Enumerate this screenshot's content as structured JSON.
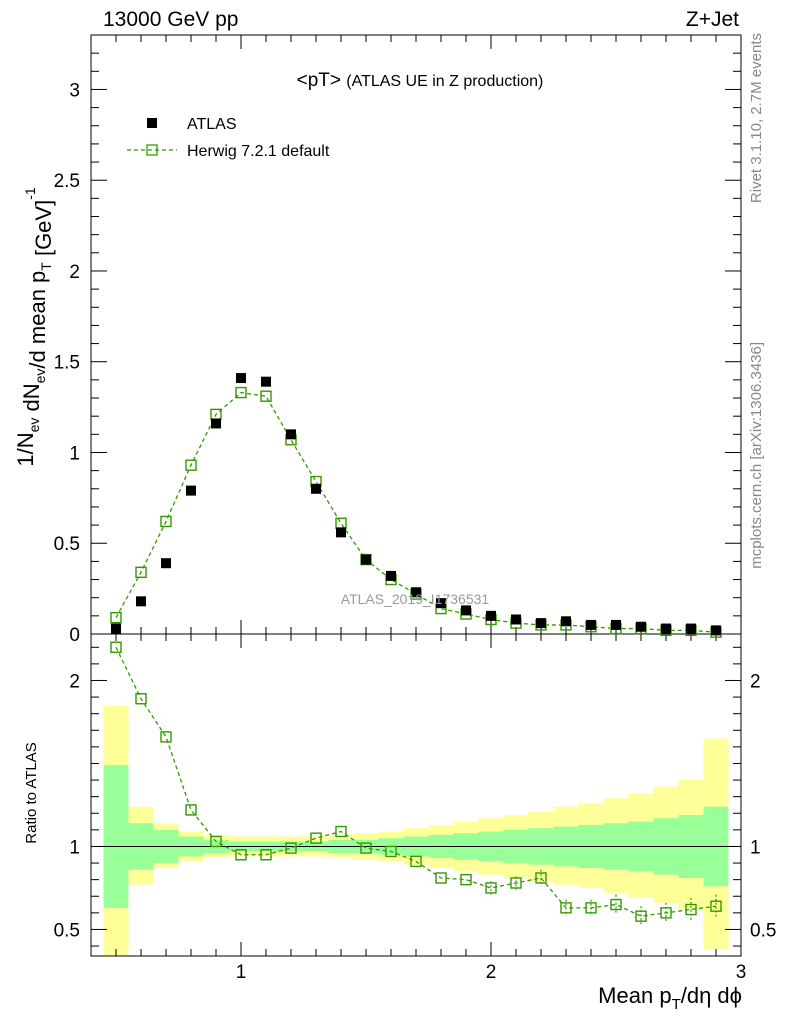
{
  "header": {
    "left": "13000 GeV pp",
    "right": "Z+Jet"
  },
  "side_labels": {
    "rivet": "Rivet 3.1.10,  2.7M events",
    "mcplots": "mcplots.cern.ch [arXiv:1306.3436]"
  },
  "chart_data": [
    {
      "type": "scatter",
      "panel": "main",
      "title": "<pT> (ATLAS UE in Z production)",
      "ylabel": "1/N_ev dN_ev/d mean p_T [GeV]^-1",
      "xlim": [
        0.4,
        3.0
      ],
      "ylim": [
        0,
        3.3
      ],
      "y_ticks": [
        0,
        0.5,
        1,
        1.5,
        2,
        2.5,
        3
      ],
      "y_tick_labels": [
        "0",
        "0.5",
        "1",
        "1.5",
        "2",
        "2.5",
        "3"
      ],
      "watermark": "ATLAS_2019_I1736531",
      "legend_position": "top-left",
      "x": [
        0.5,
        0.6,
        0.7,
        0.8,
        0.9,
        1.0,
        1.1,
        1.2,
        1.3,
        1.4,
        1.5,
        1.6,
        1.7,
        1.8,
        1.9,
        2.0,
        2.1,
        2.2,
        2.3,
        2.4,
        2.5,
        2.6,
        2.7,
        2.8,
        2.9
      ],
      "series": [
        {
          "name": "ATLAS",
          "style": "data",
          "color": "#000000",
          "values": [
            0.03,
            0.18,
            0.39,
            0.79,
            1.16,
            1.41,
            1.39,
            1.1,
            0.8,
            0.56,
            0.41,
            0.32,
            0.23,
            0.17,
            0.13,
            0.1,
            0.08,
            0.06,
            0.07,
            0.05,
            0.05,
            0.04,
            0.03,
            0.03,
            0.02
          ]
        },
        {
          "name": "Herwig 7.2.1 default",
          "style": "mc",
          "color": "#339900",
          "values": [
            0.09,
            0.34,
            0.62,
            0.93,
            1.21,
            1.33,
            1.31,
            1.07,
            0.84,
            0.61,
            0.41,
            0.3,
            0.22,
            0.14,
            0.11,
            0.08,
            0.06,
            0.05,
            0.05,
            0.04,
            0.03,
            0.03,
            0.02,
            0.02,
            0.01
          ]
        }
      ]
    },
    {
      "type": "line",
      "panel": "ratio",
      "ylabel": "Ratio to ATLAS",
      "xlabel": "Mean p_T/dη dϕ",
      "xlim": [
        0.4,
        3.0
      ],
      "ylim": [
        0.34,
        2.28
      ],
      "x_ticks": [
        1,
        2,
        3
      ],
      "x_tick_labels": [
        "1",
        "2",
        "3"
      ],
      "y_ticks": [
        0.5,
        1,
        2
      ],
      "y_tick_labels": [
        "0.5",
        "1",
        "2"
      ],
      "band_edges": [
        0.45,
        0.55,
        0.65,
        0.75,
        0.85,
        0.95,
        1.05,
        1.15,
        1.25,
        1.35,
        1.45,
        1.55,
        1.65,
        1.75,
        1.85,
        1.95,
        2.05,
        2.15,
        2.25,
        2.35,
        2.45,
        2.55,
        2.65,
        2.75,
        2.85,
        2.95
      ],
      "band_stat": [
        [
          0.63,
          1.49
        ],
        [
          0.86,
          1.14
        ],
        [
          0.9,
          1.1
        ],
        [
          0.94,
          1.06
        ],
        [
          0.96,
          1.04
        ],
        [
          0.97,
          1.03
        ],
        [
          0.97,
          1.03
        ],
        [
          0.97,
          1.03
        ],
        [
          0.97,
          1.03
        ],
        [
          0.96,
          1.04
        ],
        [
          0.96,
          1.04
        ],
        [
          0.95,
          1.05
        ],
        [
          0.94,
          1.06
        ],
        [
          0.93,
          1.07
        ],
        [
          0.92,
          1.08
        ],
        [
          0.91,
          1.09
        ],
        [
          0.9,
          1.1
        ],
        [
          0.89,
          1.11
        ],
        [
          0.88,
          1.12
        ],
        [
          0.87,
          1.13
        ],
        [
          0.86,
          1.14
        ],
        [
          0.85,
          1.15
        ],
        [
          0.83,
          1.17
        ],
        [
          0.81,
          1.19
        ],
        [
          0.76,
          1.24
        ]
      ],
      "band_total": [
        [
          0.34,
          1.85
        ],
        [
          0.77,
          1.24
        ],
        [
          0.87,
          1.14
        ],
        [
          0.91,
          1.09
        ],
        [
          0.93,
          1.07
        ],
        [
          0.94,
          1.06
        ],
        [
          0.94,
          1.06
        ],
        [
          0.94,
          1.06
        ],
        [
          0.94,
          1.06
        ],
        [
          0.93,
          1.07
        ],
        [
          0.92,
          1.08
        ],
        [
          0.91,
          1.09
        ],
        [
          0.89,
          1.11
        ],
        [
          0.87,
          1.13
        ],
        [
          0.85,
          1.15
        ],
        [
          0.83,
          1.17
        ],
        [
          0.81,
          1.19
        ],
        [
          0.79,
          1.21
        ],
        [
          0.77,
          1.24
        ],
        [
          0.75,
          1.26
        ],
        [
          0.72,
          1.29
        ],
        [
          0.69,
          1.32
        ],
        [
          0.66,
          1.36
        ],
        [
          0.62,
          1.4
        ],
        [
          0.38,
          1.65
        ]
      ],
      "series": [
        {
          "name": "Herwig 7.2.1 default",
          "color": "#339900",
          "values": [
            2.2,
            1.89,
            1.66,
            1.22,
            1.03,
            0.95,
            0.95,
            0.99,
            1.05,
            1.09,
            0.99,
            0.97,
            0.91,
            0.81,
            0.8,
            0.75,
            0.78,
            0.81,
            0.63,
            0.63,
            0.65,
            0.58,
            0.6,
            0.62,
            0.64
          ],
          "errors": [
            0.01,
            0.01,
            0.01,
            0.02,
            0.02,
            0.01,
            0.01,
            0.01,
            0.02,
            0.02,
            0.02,
            0.02,
            0.02,
            0.03,
            0.03,
            0.04,
            0.04,
            0.05,
            0.05,
            0.05,
            0.06,
            0.06,
            0.06,
            0.07,
            0.07
          ]
        }
      ]
    }
  ],
  "colors": {
    "stat_band": "#99ff99",
    "total_band": "#ffff99",
    "mc": "#339900",
    "data": "#000000"
  }
}
